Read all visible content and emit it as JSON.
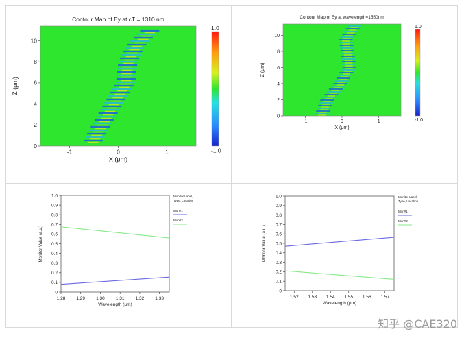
{
  "chart_data": [
    {
      "type": "heatmap",
      "title": "Contour Map of Ey at cT = 1310  nm",
      "xlabel": "X (μm)",
      "ylabel": "Z (μm)",
      "xlim": [
        -1.6,
        1.6
      ],
      "ylim": [
        0,
        11.4
      ],
      "xticks": [
        -1,
        0,
        1
      ],
      "yticks": [
        0,
        2,
        4,
        6,
        8,
        10
      ],
      "colorbar": {
        "min": -1.0,
        "max": 1.0,
        "min_label": "-1.0",
        "max_label": "1.0"
      },
      "background_color": "#2ee62e",
      "beam_path": [
        {
          "z": 0.2,
          "x": -0.55
        },
        {
          "z": 2.0,
          "x": -0.35
        },
        {
          "z": 4.0,
          "x": -0.1
        },
        {
          "z": 6.0,
          "x": 0.15
        },
        {
          "z": 8.0,
          "x": 0.2
        },
        {
          "z": 9.5,
          "x": 0.35
        },
        {
          "z": 11.2,
          "x": 0.7
        }
      ]
    },
    {
      "type": "heatmap",
      "title": "Contour Map of Ey at wavelength=1550nm",
      "xlabel": "X (μm)",
      "ylabel": "Z (μm)",
      "xlim": [
        -1.6,
        1.6
      ],
      "ylim": [
        0,
        11.4
      ],
      "xticks": [
        -1,
        0,
        1
      ],
      "yticks": [
        0,
        2,
        4,
        6,
        8,
        10
      ],
      "colorbar": {
        "min": -1.0,
        "max": 1.0,
        "min_label": "-1.0",
        "max_label": "1.0"
      },
      "background_color": "#2ee62e",
      "beam_path": [
        {
          "z": 0.2,
          "x": -0.55
        },
        {
          "z": 2.0,
          "x": -0.4
        },
        {
          "z": 4.0,
          "x": -0.05
        },
        {
          "z": 6.0,
          "x": 0.2
        },
        {
          "z": 8.0,
          "x": 0.15
        },
        {
          "z": 9.5,
          "x": 0.1
        },
        {
          "z": 11.2,
          "x": 0.35
        }
      ]
    },
    {
      "type": "line",
      "title": "",
      "xlabel": "Wavelength (μm)",
      "ylabel": "Monitor Value (a.u.)",
      "xlim": [
        1.28,
        1.335
      ],
      "ylim": [
        0,
        1.0
      ],
      "xticks": [
        1.28,
        1.29,
        1.3,
        1.31,
        1.32,
        1.33
      ],
      "xtick_labels": [
        "1.28",
        "1.29",
        "1.30",
        "1.31",
        "1.32",
        "1.33"
      ],
      "yticks": [
        0,
        0.1,
        0.2,
        0.3,
        0.4,
        0.5,
        0.6,
        0.7,
        0.8,
        0.9,
        1.0
      ],
      "ytick_labels": [
        "0",
        "0.1",
        "0.2",
        "0.3",
        "0.4",
        "0.5",
        "0.6",
        "0.7",
        "0.8",
        "0.9",
        "1.0"
      ],
      "legend_title": [
        "Monitor Label,",
        "Type, Location"
      ],
      "legend_position": "right",
      "series": [
        {
          "name": "Mon#1",
          "color": "#6a6ae0",
          "x": [
            1.28,
            1.335
          ],
          "values": [
            0.08,
            0.155
          ]
        },
        {
          "name": "Mon#2",
          "color": "#88e888",
          "x": [
            1.28,
            1.335
          ],
          "values": [
            0.675,
            0.56
          ]
        }
      ]
    },
    {
      "type": "line",
      "title": "",
      "xlabel": "Wavelength (μm)",
      "ylabel": "Monitor Value (a.u.)",
      "xlim": [
        1.515,
        1.575
      ],
      "ylim": [
        0,
        1.0
      ],
      "xticks": [
        1.52,
        1.53,
        1.54,
        1.55,
        1.56,
        1.57
      ],
      "xtick_labels": [
        "1.52",
        "1.53",
        "1.54",
        "1.55",
        "1.56",
        "1.57"
      ],
      "yticks": [
        0,
        0.1,
        0.2,
        0.3,
        0.4,
        0.5,
        0.6,
        0.7,
        0.8,
        0.9,
        1.0
      ],
      "ytick_labels": [
        "0",
        "0.1",
        "0.2",
        "0.3",
        "0.4",
        "0.5",
        "0.6",
        "0.7",
        "0.8",
        "0.9",
        "1.0"
      ],
      "legend_title": [
        "Monitor Label,",
        "Type, Location"
      ],
      "legend_position": "right",
      "series": [
        {
          "name": "Mon#1",
          "color": "#6a6ae0",
          "x": [
            1.515,
            1.575
          ],
          "values": [
            0.47,
            0.565
          ]
        },
        {
          "name": "Mon#2",
          "color": "#88e888",
          "x": [
            1.515,
            1.575
          ],
          "values": [
            0.21,
            0.12
          ]
        }
      ]
    }
  ],
  "watermark": "知乎 @CAE320"
}
